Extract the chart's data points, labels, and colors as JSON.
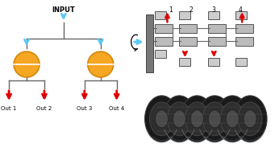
{
  "bg_color": "#ffffff",
  "input_text": "INPUT",
  "out_labels": [
    "Out 1",
    "Out 2",
    "Out 3",
    "Out 4"
  ],
  "blue_arrow_color": "#5bc8f5",
  "red_arrow_color": "#dd0000",
  "orange_circle_color": "#f5a623",
  "orange_circle_edge": "#d4880a",
  "line_color": "#666666",
  "numbers": [
    "1",
    "2",
    "3",
    "4"
  ],
  "fig_width": 3.41,
  "fig_height": 1.89,
  "dpi": 100
}
